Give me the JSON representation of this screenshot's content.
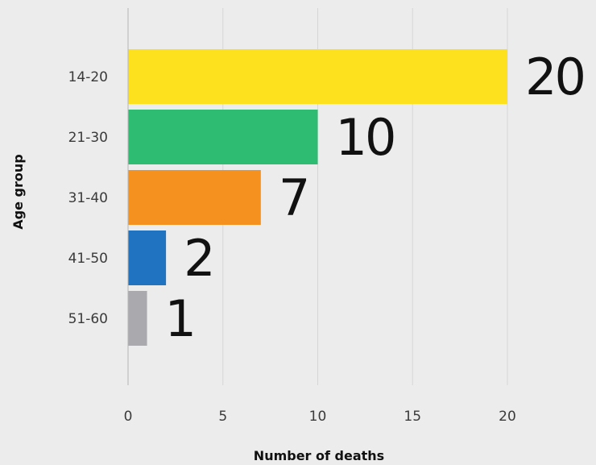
{
  "chart_data": {
    "type": "bar",
    "orientation": "horizontal",
    "categories": [
      "14-20",
      "21-30",
      "31-40",
      "41-50",
      "51-60"
    ],
    "values": [
      20,
      10,
      7,
      2,
      1
    ],
    "colors": [
      "#fde01e",
      "#2ebc72",
      "#f5921f",
      "#1f73c1",
      "#a9a9ae"
    ],
    "xlabel": "Number of deaths",
    "ylabel": "Age group",
    "xlim": [
      0,
      20
    ],
    "xticks": [
      0,
      5,
      10,
      15,
      20
    ],
    "grid": "vertical",
    "legend": "none"
  }
}
